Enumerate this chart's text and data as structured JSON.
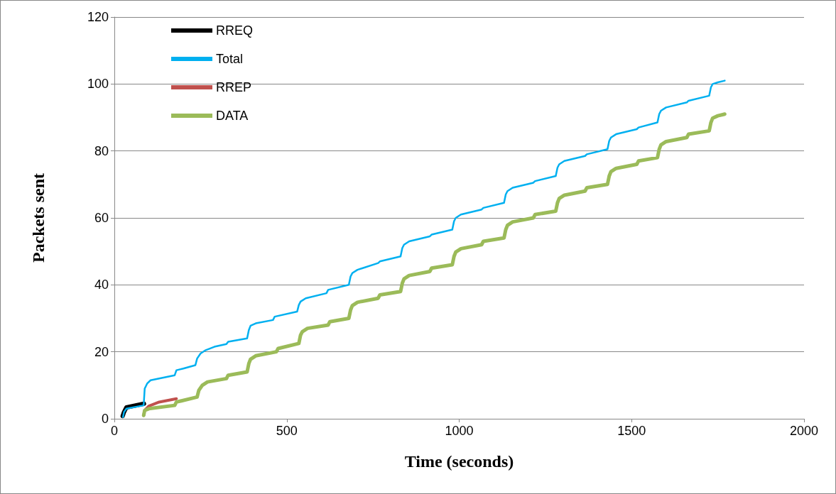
{
  "chart_data": {
    "type": "line",
    "xlabel": "Time (seconds)",
    "ylabel": "Packets sent",
    "xlim": [
      0,
      2000
    ],
    "xticks": [
      0,
      500,
      1000,
      1500,
      2000
    ],
    "ylim": [
      0,
      120
    ],
    "yticks": [
      0,
      20,
      40,
      60,
      80,
      100,
      120
    ],
    "grid": "y",
    "legend": "top left",
    "marker": "none",
    "line_style": "solid",
    "series": [
      {
        "name": "RREQ",
        "color": "#000000",
        "x": [
          24,
          28,
          35,
          86
        ],
        "values": [
          0.8,
          2,
          3.4,
          4.5
        ]
      },
      {
        "name": "Total",
        "color": "#00b0f0",
        "x": [
          25,
          28,
          35,
          85,
          88,
          95,
          105,
          175,
          180,
          200,
          235,
          240,
          250,
          265,
          290,
          325,
          330,
          385,
          390,
          395,
          410,
          460,
          465,
          530,
          535,
          540,
          555,
          615,
          620,
          680,
          685,
          690,
          705,
          765,
          770,
          830,
          835,
          840,
          855,
          915,
          920,
          980,
          985,
          990,
          1005,
          1065,
          1070,
          1130,
          1135,
          1140,
          1155,
          1215,
          1220,
          1280,
          1285,
          1290,
          1305,
          1365,
          1370,
          1430,
          1435,
          1440,
          1455,
          1515,
          1520,
          1575,
          1580,
          1585,
          1600,
          1660,
          1665,
          1725,
          1730,
          1735,
          1750,
          1770
        ],
        "values": [
          0.5,
          2,
          3,
          4,
          9,
          10.5,
          11.5,
          13,
          14.5,
          15,
          16,
          18,
          19.5,
          20.5,
          21.5,
          22.3,
          23,
          24,
          26.5,
          27.8,
          28.5,
          29.5,
          30.5,
          32,
          34,
          35,
          36,
          37.5,
          38.5,
          40,
          42.5,
          43.5,
          44.5,
          46.5,
          47,
          48.5,
          51,
          52,
          53,
          54.5,
          55,
          56.5,
          59,
          60,
          61,
          62.5,
          63,
          64.5,
          67,
          68,
          69,
          70.5,
          71,
          72.5,
          75,
          76,
          77,
          78.5,
          79,
          80.5,
          83,
          84,
          85,
          86.5,
          87,
          88.5,
          91,
          92,
          93,
          94.5,
          95,
          96.5,
          99,
          100,
          100.5,
          101
        ]
      },
      {
        "name": "RREP",
        "color": "#c0504d",
        "x": [
          85,
          88,
          100,
          130,
          180
        ],
        "values": [
          1,
          2.5,
          3.8,
          5,
          6
        ]
      },
      {
        "name": "DATA",
        "color": "#9bbb59",
        "x": [
          85,
          88,
          100,
          175,
          180,
          240,
          245,
          255,
          270,
          325,
          330,
          385,
          390,
          395,
          410,
          470,
          475,
          535,
          540,
          545,
          560,
          620,
          625,
          680,
          685,
          690,
          705,
          765,
          770,
          830,
          835,
          840,
          855,
          915,
          920,
          980,
          985,
          990,
          1005,
          1065,
          1070,
          1130,
          1135,
          1140,
          1155,
          1215,
          1220,
          1280,
          1285,
          1290,
          1305,
          1365,
          1370,
          1430,
          1435,
          1440,
          1455,
          1515,
          1520,
          1575,
          1580,
          1585,
          1600,
          1660,
          1665,
          1725,
          1730,
          1735,
          1750,
          1770
        ],
        "values": [
          1,
          2.5,
          3,
          4,
          5,
          6.5,
          8.5,
          10,
          11,
          12,
          13,
          14,
          16.5,
          17.8,
          18.8,
          20,
          21,
          22.5,
          25,
          26,
          27,
          28,
          29,
          30,
          32.5,
          33.8,
          34.8,
          36,
          37,
          38,
          40.5,
          41.8,
          42.8,
          44,
          45,
          46,
          48.5,
          49.8,
          50.8,
          52,
          53,
          54,
          56.5,
          57.8,
          58.8,
          60,
          61,
          62,
          64.5,
          65.8,
          66.8,
          68,
          69,
          70,
          72.5,
          73.8,
          74.8,
          76,
          77,
          78,
          80.5,
          81.8,
          82.8,
          84,
          85,
          86,
          88.5,
          89.8,
          90.5,
          91
        ]
      }
    ]
  }
}
